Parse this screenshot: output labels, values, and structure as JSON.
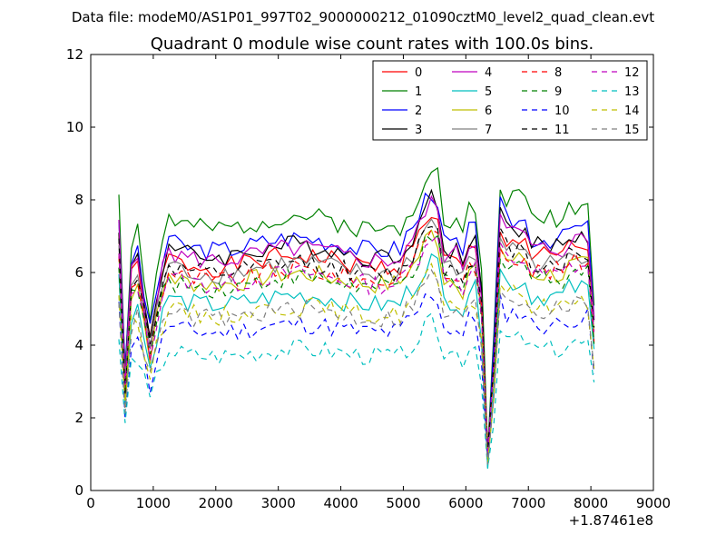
{
  "suptitle": "Data file: modeM0/AS1P01_997T02_9000000212_01090cztM0_level2_quad_clean.evt",
  "chart_data": {
    "type": "line",
    "title": "Quadrant 0 module wise count rates with 100.0s bins.",
    "xlabel": "",
    "ylabel": "",
    "x_offset_label": "+1.87461e8",
    "xlim": [
      0,
      9000
    ],
    "ylim": [
      0,
      12
    ],
    "x_ticks": [
      0,
      1000,
      2000,
      3000,
      4000,
      5000,
      6000,
      7000,
      8000,
      9000
    ],
    "y_ticks": [
      0,
      2,
      4,
      6,
      8,
      10,
      12
    ],
    "grid": false,
    "legend_position": "top-right",
    "legend_columns": 4,
    "x": [
      450,
      550,
      650,
      750,
      850,
      950,
      1050,
      1150,
      1250,
      1350,
      1450,
      1550,
      1650,
      1750,
      1850,
      1950,
      2050,
      2150,
      2250,
      2350,
      2450,
      2550,
      2650,
      2750,
      2850,
      2950,
      3050,
      3150,
      3250,
      3350,
      3450,
      3550,
      3650,
      3750,
      3850,
      3950,
      4050,
      4150,
      4250,
      4350,
      4450,
      4550,
      4650,
      4750,
      4850,
      4950,
      5050,
      5150,
      5250,
      5350,
      5450,
      5550,
      5650,
      5750,
      5850,
      5950,
      6050,
      6150,
      6250,
      6350,
      6450,
      6550,
      6650,
      6750,
      6850,
      6950,
      7050,
      7150,
      7250,
      7350,
      7450,
      7550,
      7650,
      7750,
      7850,
      7950,
      8050
    ],
    "series": [
      {
        "name": "0",
        "color": "#ff0000",
        "dashed": false,
        "base": 6.5
      },
      {
        "name": "1",
        "color": "#008000",
        "dashed": false,
        "base": 7.6
      },
      {
        "name": "2",
        "color": "#0000ff",
        "dashed": false,
        "base": 7.0
      },
      {
        "name": "3",
        "color": "#000000",
        "dashed": false,
        "base": 6.8
      },
      {
        "name": "4",
        "color": "#bf00bf",
        "dashed": false,
        "base": 6.7
      },
      {
        "name": "5",
        "color": "#00bfbf",
        "dashed": false,
        "base": 5.4
      },
      {
        "name": "6",
        "color": "#bfbf00",
        "dashed": false,
        "base": 6.0
      },
      {
        "name": "7",
        "color": "#808080",
        "dashed": false,
        "base": 6.3
      },
      {
        "name": "8",
        "color": "#ff0000",
        "dashed": true,
        "base": 6.1
      },
      {
        "name": "9",
        "color": "#008000",
        "dashed": true,
        "base": 5.9
      },
      {
        "name": "10",
        "color": "#0000ff",
        "dashed": true,
        "base": 4.6
      },
      {
        "name": "11",
        "color": "#000000",
        "dashed": true,
        "base": 6.3
      },
      {
        "name": "12",
        "color": "#bf00bf",
        "dashed": true,
        "base": 6.0
      },
      {
        "name": "13",
        "color": "#00bfbf",
        "dashed": true,
        "base": 3.9
      },
      {
        "name": "14",
        "color": "#bfbf00",
        "dashed": true,
        "base": 5.1
      },
      {
        "name": "15",
        "color": "#808080",
        "dashed": true,
        "base": 5.0
      }
    ]
  }
}
